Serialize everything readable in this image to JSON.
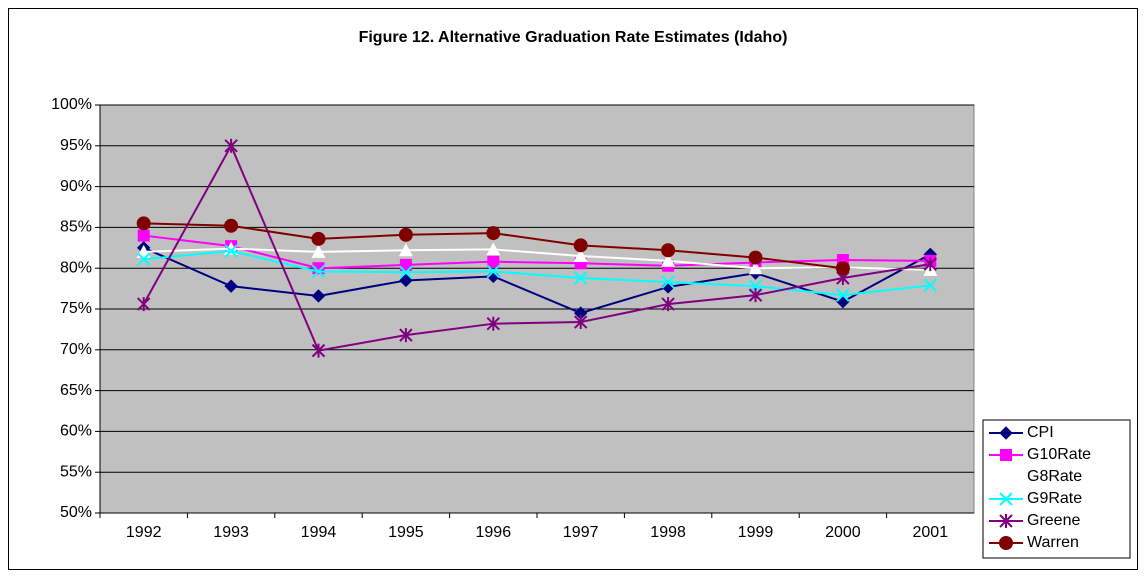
{
  "chart_data": {
    "type": "line",
    "title": "Figure 12. Alternative Graduation Rate Estimates (Idaho)",
    "categories": [
      "1992",
      "1993",
      "1994",
      "1995",
      "1996",
      "1997",
      "1998",
      "1999",
      "2000",
      "2001"
    ],
    "ylim": [
      50,
      100
    ],
    "yticks": [
      {
        "value": 50,
        "label": "50%"
      },
      {
        "value": 55,
        "label": "55%"
      },
      {
        "value": 60,
        "label": "60%"
      },
      {
        "value": 65,
        "label": "65%"
      },
      {
        "value": 70,
        "label": "70%"
      },
      {
        "value": 75,
        "label": "75%"
      },
      {
        "value": 80,
        "label": "80%"
      },
      {
        "value": 85,
        "label": "85%"
      },
      {
        "value": 90,
        "label": "90%"
      },
      {
        "value": 95,
        "label": "95%"
      },
      {
        "value": 100,
        "label": "100%"
      }
    ],
    "grid": true,
    "legend": "right",
    "series": [
      {
        "name": "CPI",
        "color": "#000080",
        "marker": "diamond",
        "values": [
          82.5,
          77.8,
          76.6,
          78.5,
          79,
          74.5,
          77.7,
          79.4,
          75.9,
          81.7
        ]
      },
      {
        "name": "G10Rate",
        "color": "#ff00ff",
        "marker": "square",
        "values": [
          84,
          82.7,
          80,
          80.4,
          80.8,
          80.6,
          80.3,
          80.7,
          81,
          80.9
        ]
      },
      {
        "name": "G8Rate",
        "color": "#ffffff",
        "marker": "triangle",
        "values": [
          82,
          82.4,
          82,
          82.2,
          82.3,
          81.5,
          80.9,
          80,
          80.1,
          79.8
        ]
      },
      {
        "name": "G9Rate",
        "color": "#00ffff",
        "marker": "x",
        "values": [
          81.1,
          82.1,
          79.6,
          79.5,
          79.6,
          78.8,
          78.3,
          77.8,
          76.7,
          77.9
        ]
      },
      {
        "name": "Greene",
        "color": "#800080",
        "marker": "star",
        "values": [
          75.6,
          95,
          69.9,
          71.8,
          73.2,
          73.4,
          75.6,
          76.7,
          78.8,
          80.5
        ]
      },
      {
        "name": "Warren",
        "color": "#800000",
        "marker": "circle",
        "values": [
          85.5,
          85.2,
          83.6,
          84.1,
          84.3,
          82.8,
          82.2,
          81.3,
          80,
          null
        ]
      }
    ]
  }
}
